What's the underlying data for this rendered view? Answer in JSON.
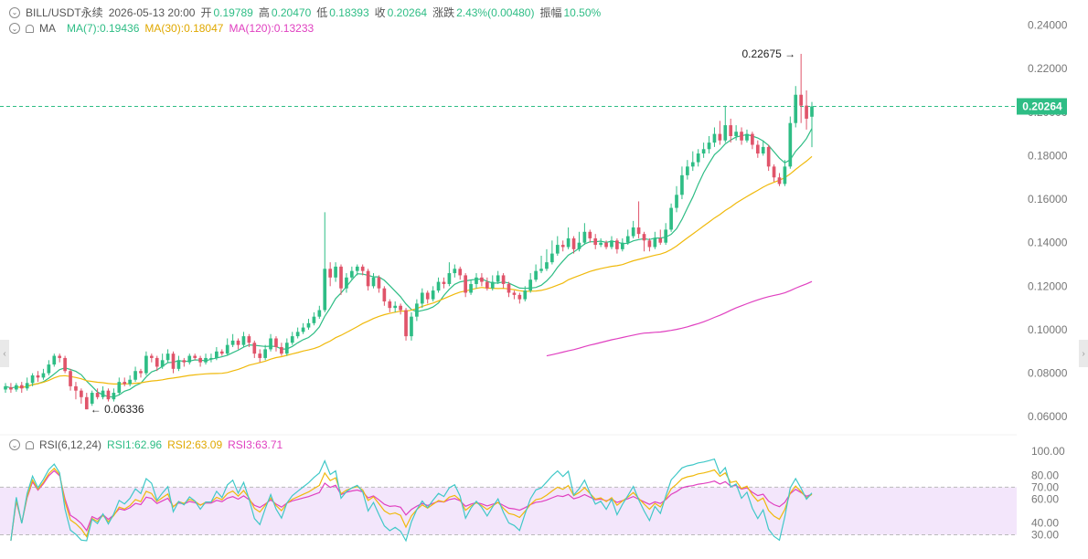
{
  "header": {
    "symbol": "BILL/USDT永续",
    "datetime": "2026-05-13 20:00",
    "open_label": "开",
    "open": "0.19789",
    "high_label": "高",
    "high": "0.20470",
    "low_label": "低",
    "low": "0.18393",
    "close_label": "收",
    "close": "0.20264",
    "change_label": "涨跌",
    "change": "2.43%(0.00480)",
    "amplitude_label": "振幅",
    "amplitude": "10.50%"
  },
  "ma_legend": {
    "name": "MA",
    "ma7": "MA(7):0.19436",
    "ma30": "MA(30):0.18047",
    "ma120": "MA(120):0.13233"
  },
  "rsi_legend": {
    "name": "RSI(6,12,24)",
    "rsi1": "RSI1:62.96",
    "rsi2": "RSI2:63.09",
    "rsi3": "RSI3:63.71"
  },
  "colors": {
    "up": "#2ebd85",
    "down": "#e0546a",
    "ma7": "#2ebd85",
    "ma30": "#f0b90b",
    "ma120": "#e040c0",
    "rsi1": "#40c8c8",
    "rsi2": "#f0b90b",
    "rsi3": "#e040c0",
    "rsi_band": "#f3e6fb",
    "price_line": "#2ebd85"
  },
  "chart_data": [
    {
      "type": "candlestick",
      "ylim": [
        0.058,
        0.244
      ],
      "y_ticks": [
        "0.24000",
        "0.22000",
        "0.20000",
        "0.18000",
        "0.16000",
        "0.14000",
        "0.12000",
        "0.10000",
        "0.08000",
        "0.06000"
      ],
      "current_price": "0.20264",
      "high_marker": "0.22675",
      "low_marker": "0.06336",
      "candles": [
        [
          0.0725,
          0.074,
          0.071,
          0.0755
        ],
        [
          0.0735,
          0.0725,
          0.071,
          0.0755
        ],
        [
          0.0725,
          0.0745,
          0.0715,
          0.0755
        ],
        [
          0.0745,
          0.073,
          0.071,
          0.076
        ],
        [
          0.073,
          0.0755,
          0.072,
          0.078
        ],
        [
          0.0755,
          0.079,
          0.074,
          0.08
        ],
        [
          0.079,
          0.078,
          0.076,
          0.081
        ],
        [
          0.078,
          0.08,
          0.077,
          0.082
        ],
        [
          0.08,
          0.084,
          0.079,
          0.086
        ],
        [
          0.084,
          0.088,
          0.083,
          0.089
        ],
        [
          0.088,
          0.087,
          0.085,
          0.089
        ],
        [
          0.087,
          0.081,
          0.08,
          0.088
        ],
        [
          0.081,
          0.074,
          0.072,
          0.082
        ],
        [
          0.074,
          0.072,
          0.068,
          0.076
        ],
        [
          0.072,
          0.069,
          0.066,
          0.073
        ],
        [
          0.069,
          0.0634,
          0.0634,
          0.071
        ],
        [
          0.066,
          0.071,
          0.065,
          0.072
        ],
        [
          0.071,
          0.069,
          0.068,
          0.073
        ],
        [
          0.069,
          0.072,
          0.068,
          0.074
        ],
        [
          0.072,
          0.068,
          0.067,
          0.073
        ],
        [
          0.068,
          0.071,
          0.067,
          0.073
        ],
        [
          0.071,
          0.076,
          0.07,
          0.078
        ],
        [
          0.076,
          0.075,
          0.074,
          0.078
        ],
        [
          0.075,
          0.077,
          0.074,
          0.079
        ],
        [
          0.077,
          0.081,
          0.076,
          0.083
        ],
        [
          0.081,
          0.08,
          0.078,
          0.082
        ],
        [
          0.08,
          0.088,
          0.079,
          0.09
        ],
        [
          0.088,
          0.087,
          0.085,
          0.089
        ],
        [
          0.087,
          0.083,
          0.081,
          0.088
        ],
        [
          0.083,
          0.086,
          0.082,
          0.089
        ],
        [
          0.086,
          0.089,
          0.085,
          0.091
        ],
        [
          0.089,
          0.082,
          0.08,
          0.09
        ],
        [
          0.082,
          0.086,
          0.081,
          0.088
        ],
        [
          0.086,
          0.085,
          0.083,
          0.087
        ],
        [
          0.085,
          0.088,
          0.084,
          0.089
        ],
        [
          0.088,
          0.087,
          0.086,
          0.089
        ],
        [
          0.087,
          0.085,
          0.083,
          0.088
        ],
        [
          0.085,
          0.087,
          0.084,
          0.089
        ],
        [
          0.087,
          0.087,
          0.085,
          0.089
        ],
        [
          0.087,
          0.09,
          0.086,
          0.092
        ],
        [
          0.09,
          0.089,
          0.088,
          0.091
        ],
        [
          0.089,
          0.093,
          0.088,
          0.096
        ],
        [
          0.093,
          0.095,
          0.092,
          0.098
        ],
        [
          0.095,
          0.093,
          0.091,
          0.096
        ],
        [
          0.093,
          0.097,
          0.092,
          0.099
        ],
        [
          0.097,
          0.094,
          0.092,
          0.098
        ],
        [
          0.094,
          0.089,
          0.087,
          0.095
        ],
        [
          0.089,
          0.087,
          0.085,
          0.091
        ],
        [
          0.087,
          0.091,
          0.086,
          0.093
        ],
        [
          0.091,
          0.096,
          0.09,
          0.098
        ],
        [
          0.096,
          0.092,
          0.09,
          0.097
        ],
        [
          0.092,
          0.089,
          0.088,
          0.094
        ],
        [
          0.089,
          0.094,
          0.088,
          0.096
        ],
        [
          0.094,
          0.097,
          0.093,
          0.099
        ],
        [
          0.097,
          0.099,
          0.096,
          0.101
        ],
        [
          0.099,
          0.101,
          0.098,
          0.103
        ],
        [
          0.101,
          0.103,
          0.1,
          0.105
        ],
        [
          0.103,
          0.106,
          0.102,
          0.108
        ],
        [
          0.106,
          0.109,
          0.105,
          0.111
        ],
        [
          0.109,
          0.128,
          0.108,
          0.154
        ],
        [
          0.128,
          0.124,
          0.12,
          0.131
        ],
        [
          0.124,
          0.129,
          0.122,
          0.131
        ],
        [
          0.129,
          0.119,
          0.116,
          0.13
        ],
        [
          0.119,
          0.124,
          0.117,
          0.126
        ],
        [
          0.124,
          0.127,
          0.123,
          0.129
        ],
        [
          0.127,
          0.129,
          0.125,
          0.13
        ],
        [
          0.129,
          0.127,
          0.125,
          0.13
        ],
        [
          0.127,
          0.12,
          0.118,
          0.128
        ],
        [
          0.12,
          0.124,
          0.119,
          0.126
        ],
        [
          0.124,
          0.119,
          0.117,
          0.125
        ],
        [
          0.119,
          0.113,
          0.111,
          0.12
        ],
        [
          0.113,
          0.11,
          0.108,
          0.114
        ],
        [
          0.11,
          0.111,
          0.108,
          0.113
        ],
        [
          0.111,
          0.109,
          0.107,
          0.112
        ],
        [
          0.109,
          0.097,
          0.095,
          0.11
        ],
        [
          0.097,
          0.106,
          0.095,
          0.108
        ],
        [
          0.106,
          0.112,
          0.104,
          0.114
        ],
        [
          0.112,
          0.117,
          0.11,
          0.119
        ],
        [
          0.117,
          0.114,
          0.112,
          0.118
        ],
        [
          0.114,
          0.118,
          0.113,
          0.12
        ],
        [
          0.118,
          0.122,
          0.117,
          0.124
        ],
        [
          0.122,
          0.121,
          0.119,
          0.124
        ],
        [
          0.121,
          0.126,
          0.12,
          0.131
        ],
        [
          0.126,
          0.128,
          0.124,
          0.13
        ],
        [
          0.128,
          0.125,
          0.123,
          0.129
        ],
        [
          0.125,
          0.117,
          0.115,
          0.126
        ],
        [
          0.117,
          0.121,
          0.116,
          0.123
        ],
        [
          0.121,
          0.124,
          0.119,
          0.126
        ],
        [
          0.124,
          0.122,
          0.12,
          0.126
        ],
        [
          0.122,
          0.119,
          0.118,
          0.124
        ],
        [
          0.119,
          0.122,
          0.118,
          0.125
        ],
        [
          0.122,
          0.125,
          0.121,
          0.127
        ],
        [
          0.125,
          0.121,
          0.119,
          0.126
        ],
        [
          0.121,
          0.117,
          0.115,
          0.122
        ],
        [
          0.117,
          0.116,
          0.114,
          0.118
        ],
        [
          0.116,
          0.114,
          0.112,
          0.117
        ],
        [
          0.114,
          0.118,
          0.113,
          0.12
        ],
        [
          0.118,
          0.123,
          0.117,
          0.126
        ],
        [
          0.123,
          0.127,
          0.122,
          0.13
        ],
        [
          0.127,
          0.128,
          0.126,
          0.134
        ],
        [
          0.128,
          0.131,
          0.127,
          0.137
        ],
        [
          0.131,
          0.135,
          0.13,
          0.141
        ],
        [
          0.135,
          0.139,
          0.134,
          0.143
        ],
        [
          0.139,
          0.138,
          0.136,
          0.141
        ],
        [
          0.138,
          0.142,
          0.137,
          0.147
        ],
        [
          0.142,
          0.137,
          0.135,
          0.143
        ],
        [
          0.137,
          0.14,
          0.136,
          0.145
        ],
        [
          0.14,
          0.145,
          0.139,
          0.149
        ],
        [
          0.145,
          0.142,
          0.14,
          0.146
        ],
        [
          0.142,
          0.139,
          0.137,
          0.144
        ],
        [
          0.139,
          0.14,
          0.138,
          0.142
        ],
        [
          0.14,
          0.138,
          0.137,
          0.141
        ],
        [
          0.138,
          0.141,
          0.137,
          0.143
        ],
        [
          0.141,
          0.137,
          0.135,
          0.142
        ],
        [
          0.137,
          0.14,
          0.136,
          0.142
        ],
        [
          0.14,
          0.143,
          0.139,
          0.146
        ],
        [
          0.143,
          0.147,
          0.142,
          0.15
        ],
        [
          0.147,
          0.144,
          0.142,
          0.159
        ],
        [
          0.144,
          0.141,
          0.136,
          0.145
        ],
        [
          0.141,
          0.138,
          0.136,
          0.142
        ],
        [
          0.138,
          0.142,
          0.137,
          0.145
        ],
        [
          0.142,
          0.14,
          0.139,
          0.146
        ],
        [
          0.14,
          0.146,
          0.139,
          0.149
        ],
        [
          0.146,
          0.156,
          0.145,
          0.158
        ],
        [
          0.156,
          0.162,
          0.154,
          0.166
        ],
        [
          0.162,
          0.171,
          0.16,
          0.175
        ],
        [
          0.171,
          0.175,
          0.169,
          0.178
        ],
        [
          0.175,
          0.177,
          0.173,
          0.182
        ],
        [
          0.177,
          0.181,
          0.175,
          0.183
        ],
        [
          0.181,
          0.183,
          0.179,
          0.186
        ],
        [
          0.183,
          0.186,
          0.181,
          0.189
        ],
        [
          0.186,
          0.19,
          0.184,
          0.193
        ],
        [
          0.19,
          0.187,
          0.185,
          0.196
        ],
        [
          0.187,
          0.194,
          0.186,
          0.203
        ],
        [
          0.194,
          0.189,
          0.186,
          0.197
        ],
        [
          0.189,
          0.191,
          0.187,
          0.194
        ],
        [
          0.191,
          0.187,
          0.185,
          0.193
        ],
        [
          0.187,
          0.19,
          0.186,
          0.192
        ],
        [
          0.19,
          0.185,
          0.183,
          0.191
        ],
        [
          0.185,
          0.181,
          0.179,
          0.187
        ],
        [
          0.181,
          0.184,
          0.18,
          0.187
        ],
        [
          0.184,
          0.175,
          0.173,
          0.185
        ],
        [
          0.175,
          0.17,
          0.168,
          0.176
        ],
        [
          0.17,
          0.167,
          0.166,
          0.172
        ],
        [
          0.167,
          0.175,
          0.166,
          0.178
        ],
        [
          0.175,
          0.195,
          0.174,
          0.198
        ],
        [
          0.195,
          0.208,
          0.193,
          0.212
        ],
        [
          0.208,
          0.203,
          0.195,
          0.2268
        ],
        [
          0.203,
          0.197,
          0.192,
          0.21
        ],
        [
          0.1979,
          0.20264,
          0.1839,
          0.2047
        ]
      ],
      "ma30_range": [
        2,
        153
      ],
      "ma120_range": [
        100,
        153
      ]
    },
    {
      "type": "line",
      "ylim": [
        25,
        104
      ],
      "y_ticks": [
        "100.00",
        "80.00",
        "70.00",
        "60.00",
        "40.00",
        "30.00"
      ],
      "band": [
        30,
        70
      ],
      "series": [
        {
          "name": "RSI1"
        },
        {
          "name": "RSI2"
        },
        {
          "name": "RSI3"
        }
      ]
    }
  ]
}
